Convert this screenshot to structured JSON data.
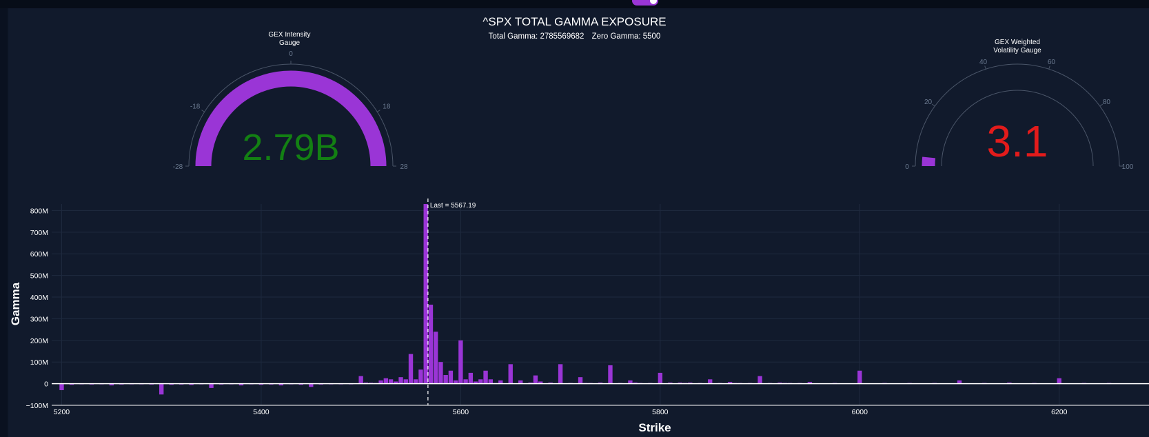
{
  "header": {
    "title": "^SPX TOTAL GAMMA EXPOSURE",
    "total_gamma_text": "Total Gamma: 2785569682",
    "zero_gamma_text": "Zero Gamma: 5500"
  },
  "gauges": {
    "intensity": {
      "title_line1": "GEX Intensity",
      "title_line2": "Gauge",
      "value_text": "2.79B",
      "value": 2.79,
      "range": [
        -28,
        28
      ],
      "ticks": [
        "-28",
        "-18",
        "0",
        "18",
        "28"
      ],
      "bar_color": "#9a35d6",
      "value_color": "#138013"
    },
    "volatility": {
      "title_line1": "GEX Weighted",
      "title_line2": "Volatility Gauge",
      "value_text": "3.1",
      "value": 3.1,
      "range": [
        0,
        100
      ],
      "ticks": [
        "0",
        "20",
        "40",
        "60",
        "80",
        "100"
      ],
      "bar_color": "#9a35d6",
      "value_color": "#e31b1b"
    }
  },
  "chart_data": {
    "type": "bar",
    "xlabel": "Strike",
    "ylabel": "Gamma",
    "xlim": [
      5190,
      6290
    ],
    "ylim": [
      -100000000,
      830000000
    ],
    "x_ticks": [
      5200,
      5400,
      5600,
      5800,
      6000,
      6200
    ],
    "y_ticks": [
      {
        "value": 800000000,
        "label": "800M"
      },
      {
        "value": 700000000,
        "label": "700M"
      },
      {
        "value": 600000000,
        "label": "600M"
      },
      {
        "value": 500000000,
        "label": "500M"
      },
      {
        "value": 400000000,
        "label": "400M"
      },
      {
        "value": 300000000,
        "label": "300M"
      },
      {
        "value": 200000000,
        "label": "200M"
      },
      {
        "value": 100000000,
        "label": "100M"
      },
      {
        "value": 0,
        "label": "0"
      },
      {
        "value": -100000000,
        "label": "−100M"
      }
    ],
    "last_price": 5567.19,
    "last_label": "Last = 5567.19",
    "bar_color": "#9a35d6",
    "strikes": [
      5200,
      5210,
      5220,
      5230,
      5240,
      5250,
      5260,
      5270,
      5280,
      5290,
      5300,
      5310,
      5320,
      5330,
      5340,
      5350,
      5360,
      5370,
      5380,
      5390,
      5400,
      5410,
      5420,
      5430,
      5440,
      5450,
      5460,
      5470,
      5480,
      5490,
      5500,
      5505,
      5510,
      5515,
      5520,
      5525,
      5530,
      5535,
      5540,
      5545,
      5550,
      5555,
      5560,
      5565,
      5570,
      5575,
      5580,
      5585,
      5590,
      5595,
      5600,
      5605,
      5610,
      5615,
      5620,
      5625,
      5630,
      5635,
      5640,
      5650,
      5660,
      5670,
      5675,
      5680,
      5690,
      5700,
      5710,
      5720,
      5725,
      5730,
      5740,
      5750,
      5760,
      5770,
      5775,
      5780,
      5790,
      5800,
      5810,
      5820,
      5825,
      5830,
      5840,
      5850,
      5860,
      5870,
      5875,
      5880,
      5890,
      5900,
      5910,
      5920,
      5925,
      5930,
      5940,
      5950,
      5975,
      6000,
      6025,
      6050,
      6075,
      6100,
      6125,
      6150,
      6175,
      6200,
      6225,
      6250
    ],
    "values": [
      -30000000,
      -5000000,
      -3000000,
      -4000000,
      -2000000,
      -8000000,
      -4000000,
      -3000000,
      -2000000,
      -4000000,
      -50000000,
      -5000000,
      -4000000,
      -6000000,
      -3000000,
      -20000000,
      -4000000,
      -2000000,
      -8000000,
      -3000000,
      -5000000,
      -4000000,
      -8000000,
      -3000000,
      -5000000,
      -15000000,
      -4000000,
      -3000000,
      -2000000,
      -3000000,
      35000000,
      5000000,
      4000000,
      3000000,
      15000000,
      25000000,
      20000000,
      10000000,
      30000000,
      20000000,
      137000000,
      20000000,
      65000000,
      830000000,
      365000000,
      240000000,
      100000000,
      40000000,
      60000000,
      15000000,
      200000000,
      20000000,
      50000000,
      10000000,
      20000000,
      60000000,
      20000000,
      3000000,
      15000000,
      90000000,
      15000000,
      5000000,
      38000000,
      10000000,
      5000000,
      90000000,
      3000000,
      30000000,
      3000000,
      3000000,
      5000000,
      85000000,
      3000000,
      15000000,
      5000000,
      3000000,
      3000000,
      50000000,
      5000000,
      5000000,
      3000000,
      5000000,
      3000000,
      20000000,
      3000000,
      8000000,
      3000000,
      3000000,
      3000000,
      35000000,
      3000000,
      5000000,
      3000000,
      3000000,
      3000000,
      8000000,
      3000000,
      60000000,
      3000000,
      3000000,
      3000000,
      15000000,
      3000000,
      5000000,
      3000000,
      25000000,
      3000000,
      3000000
    ]
  }
}
